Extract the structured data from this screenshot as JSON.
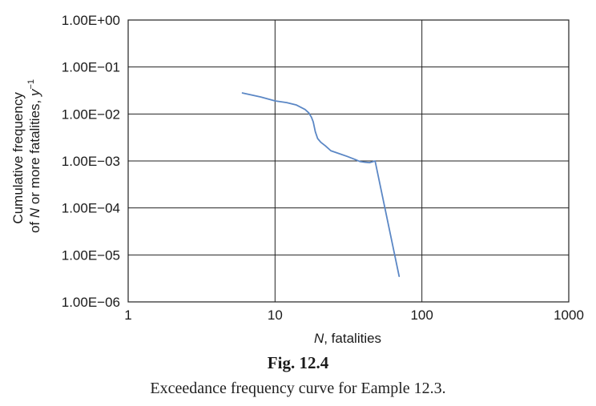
{
  "chart_data": {
    "type": "line",
    "x_scale": "log",
    "y_scale": "log",
    "xlim": [
      1,
      1000
    ],
    "ylim": [
      1e-06,
      1
    ],
    "x_ticks": [
      {
        "value": 1,
        "label": "1"
      },
      {
        "value": 10,
        "label": "10"
      },
      {
        "value": 100,
        "label": "100"
      },
      {
        "value": 1000,
        "label": "1000"
      }
    ],
    "y_ticks": [
      {
        "value": 1,
        "label": "1.00E+00"
      },
      {
        "value": 0.1,
        "label": "1.00E−01"
      },
      {
        "value": 0.01,
        "label": "1.00E−02"
      },
      {
        "value": 0.001,
        "label": "1.00E−03"
      },
      {
        "value": 0.0001,
        "label": "1.00E−04"
      },
      {
        "value": 1e-05,
        "label": "1.00E−05"
      },
      {
        "value": 1e-06,
        "label": "1.00E−06"
      }
    ],
    "xlabel": {
      "var": "N",
      "text": ", fatalities"
    },
    "ylabel": {
      "line1": "Cumulative frequency",
      "line2_prefix": "of ",
      "line2_var": "N",
      "line2_middle": " or more fatalities, ",
      "line2_unit": "y",
      "line2_sup": "−1"
    },
    "grid": true,
    "legend": "none",
    "line_color": "#5b87c5",
    "series": [
      {
        "x": [
          6,
          8,
          10,
          12,
          14,
          16,
          17,
          17.7,
          18.2,
          18.8,
          19.5,
          20.5,
          22,
          24,
          27,
          31,
          35,
          38,
          41,
          44,
          48,
          70
        ],
        "y": [
          0.028,
          0.023,
          0.019,
          0.0175,
          0.0155,
          0.0125,
          0.0105,
          0.0085,
          0.0068,
          0.0042,
          0.003,
          0.0025,
          0.0021,
          0.00165,
          0.00145,
          0.00125,
          0.00108,
          0.00097,
          0.00094,
          0.00092,
          0.001,
          3.5e-06
        ]
      }
    ]
  },
  "caption": {
    "fig_label": "Fig. 12.4",
    "text": "Exceedance frequency curve for Eample 12.3."
  }
}
